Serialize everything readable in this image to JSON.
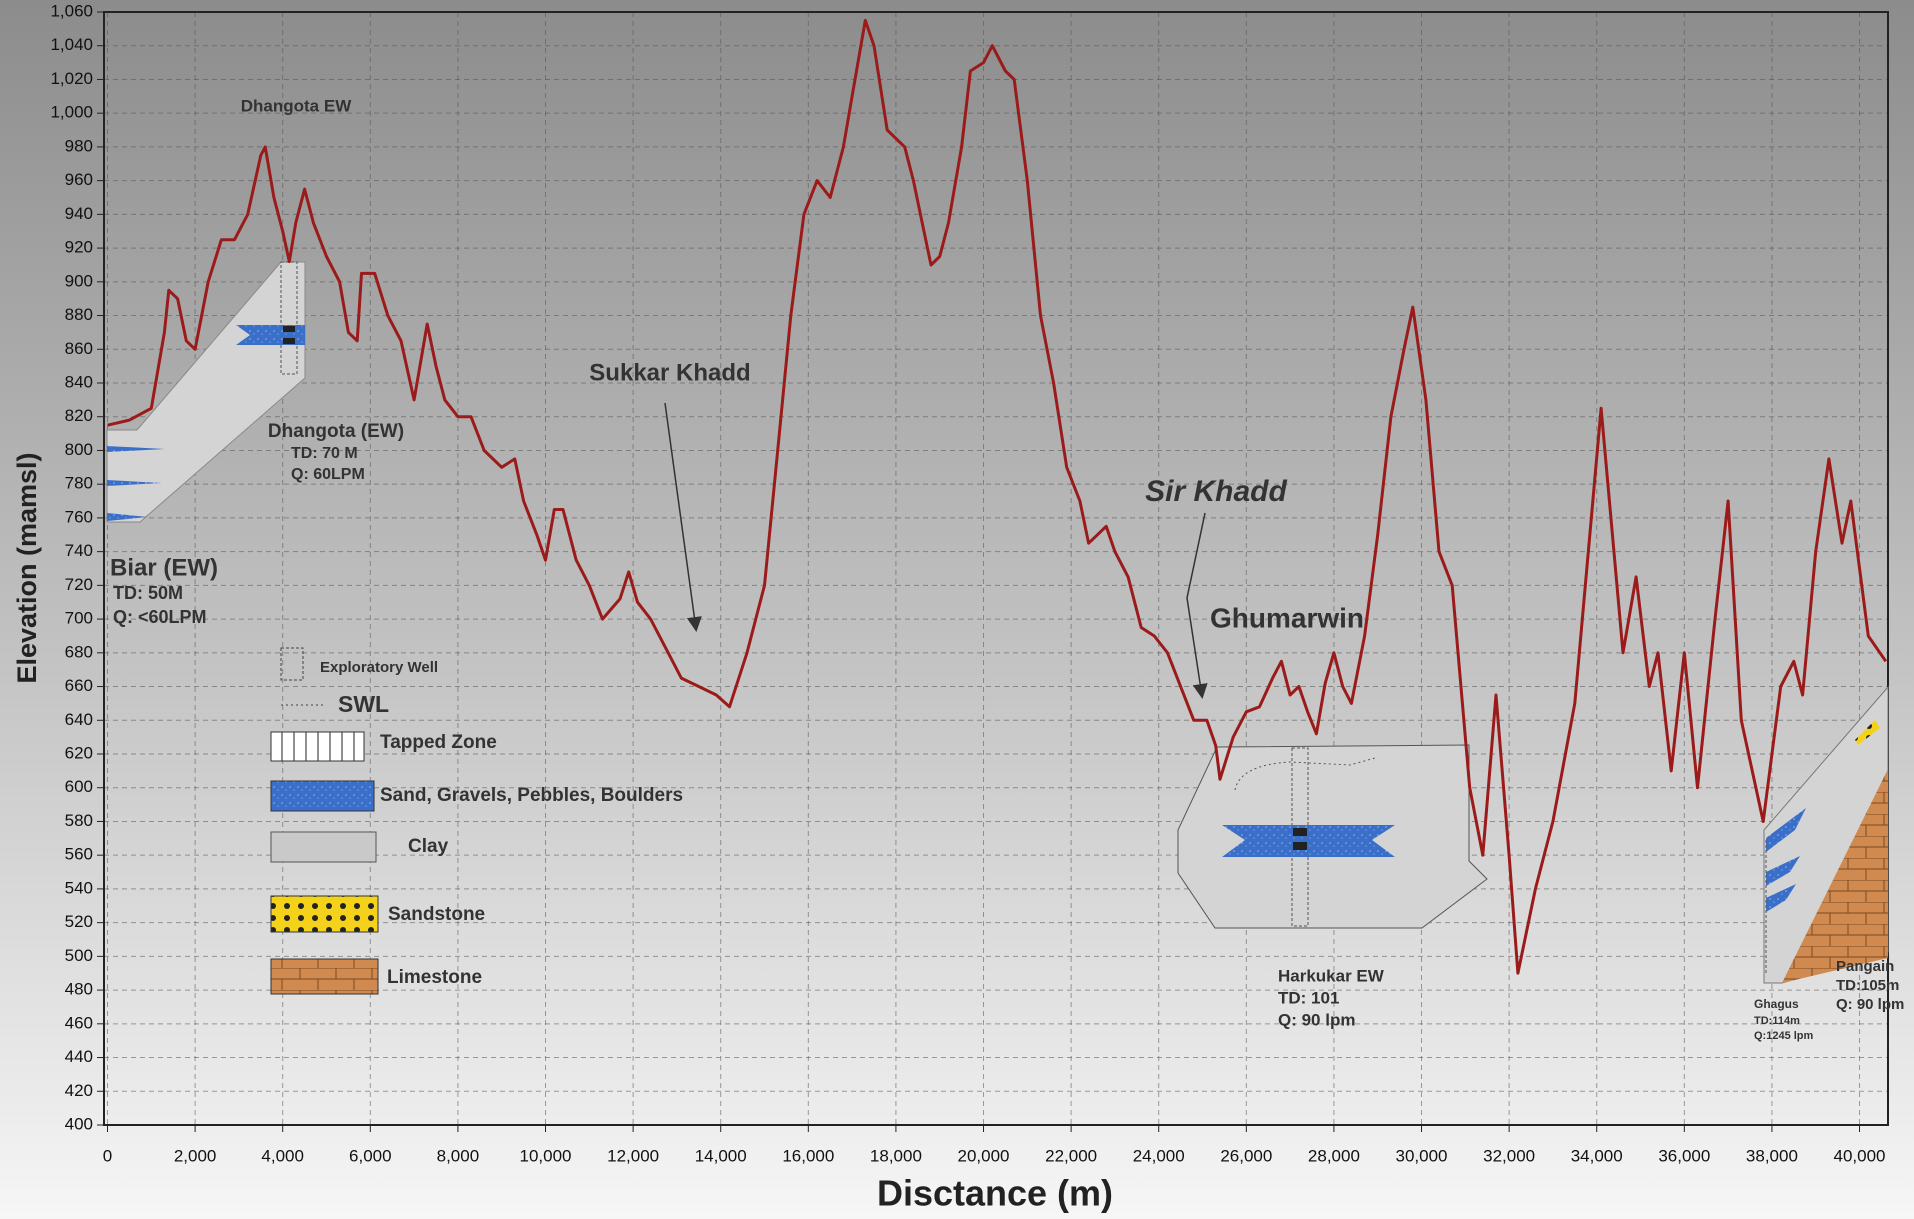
{
  "chart_data": {
    "type": "line",
    "y_label": "Elevation (mamsl)",
    "x_label": "Disctance (m)",
    "color": "#9b1b1b",
    "grid": true,
    "xlim": [
      -80,
      40650
    ],
    "ylim": [
      400,
      1060
    ],
    "xticks": [
      0,
      {
        "value": 2000,
        "label": "2,000"
      },
      {
        "value": 4000,
        "label": "4,000"
      },
      {
        "value": 6000,
        "label": "6,000"
      },
      {
        "value": 8000,
        "label": "8,000"
      },
      {
        "value": 10000,
        "label": "10,000"
      },
      {
        "value": 12000,
        "label": "12,000"
      },
      {
        "value": 14000,
        "label": "14,000"
      },
      {
        "value": 16000,
        "label": "16,000"
      },
      {
        "value": 18000,
        "label": "18,000"
      },
      {
        "value": 20000,
        "label": "20,000"
      },
      {
        "value": 22000,
        "label": "22,000"
      },
      {
        "value": 24000,
        "label": "24,000"
      },
      {
        "value": 26000,
        "label": "26,000"
      },
      {
        "value": 28000,
        "label": "28,000"
      },
      {
        "value": 30000,
        "label": "30,000"
      },
      {
        "value": 32000,
        "label": "32,000"
      },
      {
        "value": 34000,
        "label": "34,000"
      },
      {
        "value": 36000,
        "label": "36,000"
      },
      {
        "value": 38000,
        "label": "38,000"
      },
      {
        "value": 40000,
        "label": "40,000"
      }
    ],
    "yticks": [
      400,
      420,
      440,
      460,
      480,
      500,
      520,
      540,
      560,
      580,
      600,
      620,
      640,
      660,
      680,
      700,
      720,
      740,
      760,
      780,
      800,
      820,
      840,
      860,
      880,
      900,
      920,
      940,
      960,
      980,
      {
        "value": 1000,
        "label": "1,000"
      },
      {
        "value": 1020,
        "label": "1,020"
      },
      {
        "value": 1040,
        "label": "1,040"
      },
      {
        "value": 1060,
        "label": "1,060"
      }
    ],
    "x": [
      0,
      500,
      1000,
      1300,
      1400,
      1600,
      1800,
      2000,
      2300,
      2600,
      2900,
      3200,
      3500,
      3600,
      3800,
      4000,
      4150,
      4300,
      4500,
      4700,
      5000,
      5300,
      5500,
      5700,
      5800,
      6100,
      6400,
      6700,
      7000,
      7300,
      7500,
      7700,
      8000,
      8300,
      8600,
      9000,
      9300,
      9500,
      9800,
      10000,
      10200,
      10400,
      10700,
      11000,
      11300,
      11700,
      11900,
      12100,
      12400,
      12800,
      13100,
      13500,
      13900,
      14200,
      14600,
      15000,
      15300,
      15600,
      15900,
      16200,
      16500,
      16800,
      17000,
      17300,
      17500,
      17800,
      18200,
      18400,
      18600,
      18800,
      19000,
      19200,
      19500,
      19700,
      20000,
      20200,
      20500,
      20700,
      21000,
      21300,
      21600,
      21900,
      22200,
      22400,
      22600,
      22800,
      23000,
      23300,
      23600,
      23900,
      24200,
      24500,
      24800,
      25100,
      25300,
      25400,
      25700,
      26000,
      26300,
      26600,
      26800,
      27000,
      27200,
      27400,
      27600,
      27800,
      28000,
      28200,
      28400,
      28700,
      29000,
      29300,
      29600,
      29800,
      30100,
      30400,
      30700,
      31100,
      31400,
      31700,
      32000,
      32200,
      32600,
      33000,
      33500,
      34100,
      34600,
      34900,
      35200,
      35400,
      35700,
      36000,
      36300,
      36700,
      37000,
      37300,
      37800,
      38200,
      38500,
      38700,
      39000,
      39300,
      39600,
      39800,
      40200,
      40600
    ],
    "values": [
      815,
      818,
      825,
      870,
      895,
      890,
      865,
      860,
      900,
      925,
      925,
      940,
      975,
      980,
      950,
      930,
      912,
      935,
      955,
      935,
      915,
      900,
      870,
      865,
      905,
      905,
      880,
      865,
      830,
      875,
      850,
      830,
      820,
      820,
      800,
      790,
      795,
      770,
      750,
      735,
      765,
      765,
      735,
      720,
      700,
      712,
      728,
      710,
      700,
      680,
      665,
      660,
      655,
      648,
      680,
      720,
      800,
      880,
      940,
      960,
      950,
      980,
      1010,
      1055,
      1040,
      990,
      980,
      960,
      935,
      910,
      915,
      935,
      980,
      1025,
      1030,
      1040,
      1025,
      1020,
      960,
      880,
      840,
      790,
      770,
      745,
      750,
      755,
      740,
      725,
      695,
      690,
      680,
      660,
      640,
      640,
      625,
      605,
      630,
      645,
      648,
      665,
      675,
      655,
      660,
      645,
      632,
      662,
      680,
      660,
      650,
      690,
      750,
      820,
      860,
      885,
      830,
      740,
      720,
      600,
      560,
      655,
      560,
      490,
      540,
      580,
      650,
      825,
      680,
      725,
      660,
      680,
      610,
      680,
      600,
      700,
      770,
      640,
      580,
      660,
      675,
      655,
      740,
      795,
      745,
      770,
      690,
      675
    ],
    "annotations": {
      "dhangota_ew": "Dhangota EW",
      "dhangota_name": "Dhangota (EW)",
      "dhangota_td": "TD: 70 M",
      "dhangota_q": "Q: 60LPM",
      "biar_name": "Biar (EW)",
      "biar_td": "TD: 50M",
      "biar_q": "Q: <60LPM",
      "sukkar": "Sukkar Khadd",
      "sir": "Sir Khadd",
      "ghumarwin": "Ghumarwin",
      "harkukar_name": "Harkukar EW",
      "harkukar_td": "TD: 101",
      "harkukar_q": "Q: 90 lpm",
      "ghagus_name": "Ghagus",
      "ghagus_td": "TD:114m",
      "ghagus_q": "Q:1245 lpm",
      "pangain_name": "Pangain",
      "pangain_td": "TD:105m",
      "pangain_q": "Q: 90 lpm"
    },
    "legend_items": [
      "Exploratory Well",
      "SWL",
      "Tapped Zone",
      "Sand, Gravels, Pebbles, Boulders",
      "Clay",
      "Sandstone",
      "Limestone"
    ]
  }
}
